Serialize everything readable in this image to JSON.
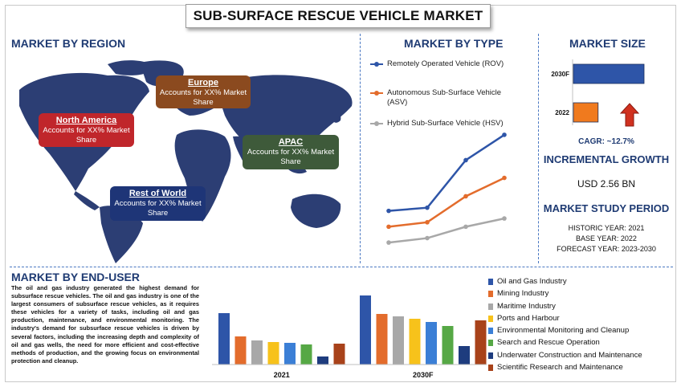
{
  "title": "SUB-SURFACE RESCUE VEHICLE MARKET",
  "region": {
    "heading": "MARKET BY REGION",
    "items": [
      {
        "name": "North America",
        "text": "Accounts for XX% Market Share",
        "color": "#c0262b"
      },
      {
        "name": "Europe",
        "text": "Accounts for XX% Market Share",
        "color": "#8b4a1f"
      },
      {
        "name": "APAC",
        "text": "Accounts for XX% Market Share",
        "color": "#3e5a3a"
      },
      {
        "name": "Rest of World",
        "text": "Accounts for XX% Market Share",
        "color": "#1e3577"
      }
    ]
  },
  "type_section": {
    "heading": "MARKET BY TYPE"
  },
  "size_section": {
    "heading": "MARKET SIZE",
    "bars": [
      {
        "label": "2030F",
        "color": "#2e55a8"
      },
      {
        "label": "2022",
        "color": "#f07a1e"
      }
    ],
    "cagr": "CAGR: ~12.7%"
  },
  "growth": {
    "heading": "INCREMENTAL GROWTH",
    "value": "USD 2.56 BN"
  },
  "period": {
    "heading": "MARKET STUDY PERIOD",
    "lines": [
      "HISTORIC YEAR: 2021",
      "BASE YEAR: 2022",
      "FORECAST YEAR: 2023-2030"
    ]
  },
  "end_user": {
    "heading": "MARKET BY END-USER",
    "text": "The oil and gas industry generated the highest demand for subsurface rescue vehicles. The oil and gas industry is one of the largest consumers of subsurface rescue vehicles, as it requires these vehicles for a variety of tasks, including oil and gas production, maintenance, and environmental monitoring. The industry's demand for subsurface rescue vehicles is driven by several factors, including the increasing depth and complexity of oil and gas wells, the need for more efficient and cost-effective methods of production, and the growing focus on environmental protection and cleanup."
  },
  "chart_data": [
    {
      "type": "line",
      "series": [
        {
          "name": "Remotely Operated Vehicle (ROV)",
          "color": "#2e55a8",
          "values": [
            40,
            45,
            120,
            160
          ]
        },
        {
          "name": "Autonomous Sub-Surface Vehicle (ASV)",
          "color": "#e36c2c",
          "values": [
            15,
            22,
            63,
            92
          ]
        },
        {
          "name": "Hybrid Sub-Surface Vehicle (HSV)",
          "color": "#a8a8a8",
          "values": [
            -10,
            -3,
            15,
            28
          ]
        }
      ],
      "x": [
        1,
        2,
        3,
        4
      ],
      "ylim": [
        -20,
        170
      ],
      "grid": false,
      "legend": "top"
    },
    {
      "type": "bar",
      "orientation": "horizontal",
      "categories": [
        "2030F",
        "2022"
      ],
      "values": [
        100,
        35
      ],
      "xlim": [
        0,
        100
      ]
    },
    {
      "type": "bar",
      "categories": [
        "2021",
        "2030F"
      ],
      "series": [
        {
          "name": "Oil and Gas Industry",
          "color": "#2e55a8",
          "values": [
            64,
            86
          ]
        },
        {
          "name": "Mining Industry",
          "color": "#e36c2c",
          "values": [
            35,
            63
          ]
        },
        {
          "name": "Maritime Industry",
          "color": "#a8a8a8",
          "values": [
            30,
            60
          ]
        },
        {
          "name": "Ports and Harbour",
          "color": "#f7c21b",
          "values": [
            28,
            57
          ]
        },
        {
          "name": "Environmental Monitoring and Cleanup",
          "color": "#3b7fd6",
          "values": [
            27,
            53
          ]
        },
        {
          "name": "Search and Rescue Operation",
          "color": "#56a845",
          "values": [
            25,
            48
          ]
        },
        {
          "name": "Underwater Construction and Maintenance",
          "color": "#1e3c7e",
          "values": [
            10,
            23
          ]
        },
        {
          "name": "Scientific Research and Maintenance",
          "color": "#a8421a",
          "values": [
            26,
            55
          ]
        }
      ],
      "ylim": [
        0,
        100
      ],
      "legend": "right"
    }
  ]
}
